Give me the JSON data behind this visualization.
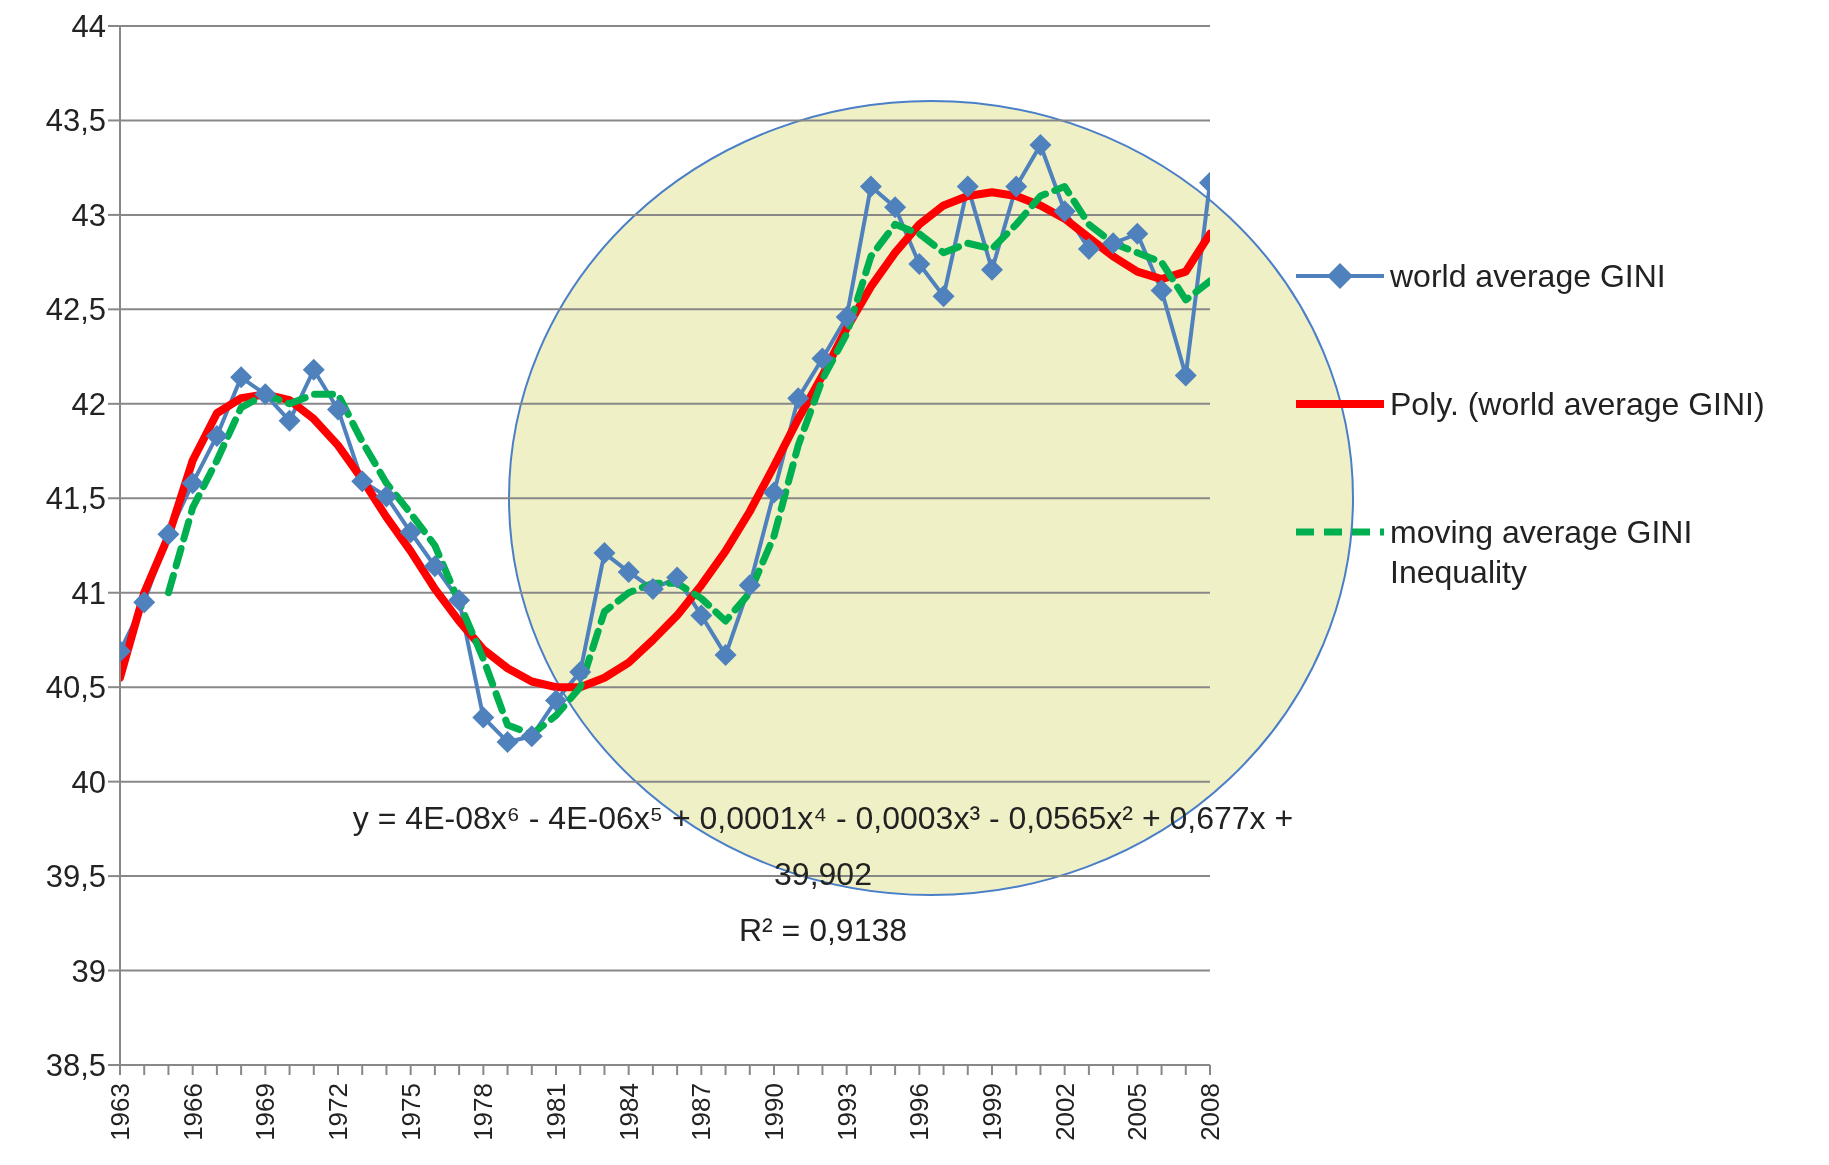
{
  "chart_data": {
    "type": "line",
    "categories": [
      "1963",
      null,
      null,
      "1966",
      null,
      null,
      "1969",
      null,
      null,
      "1972",
      null,
      null,
      "1975",
      null,
      null,
      "1978",
      null,
      null,
      "1981",
      null,
      null,
      "1984",
      null,
      null,
      "1987",
      null,
      null,
      "1990",
      null,
      null,
      "1993",
      null,
      null,
      "1996",
      null,
      null,
      "1999",
      null,
      null,
      "2002",
      null,
      null,
      "2005",
      null,
      null,
      "2008"
    ],
    "series": [
      {
        "name": "world average GINI",
        "color": "#4f81bd",
        "marker": "diamond",
        "line_style": "solid",
        "values": [
          40.69,
          40.95,
          41.31,
          41.58,
          41.83,
          42.14,
          42.05,
          41.91,
          42.18,
          41.97,
          41.59,
          41.51,
          41.32,
          41.14,
          40.96,
          40.34,
          40.21,
          40.24,
          40.43,
          40.58,
          41.21,
          41.11,
          41.02,
          41.08,
          40.88,
          40.67,
          41.04,
          41.53,
          42.03,
          42.24,
          42.46,
          43.15,
          43.04,
          42.74,
          42.57,
          43.15,
          42.71,
          43.15,
          43.37,
          43.02,
          42.82,
          42.85,
          42.9,
          42.6,
          42.15,
          43.17
        ]
      },
      {
        "name": "Poly. (world average GINI)",
        "color": "#ff0000",
        "marker": "none",
        "line_style": "solid",
        "values": [
          40.55,
          41.0,
          41.3,
          41.7,
          41.95,
          42.03,
          42.05,
          42.02,
          41.92,
          41.78,
          41.6,
          41.4,
          41.22,
          41.02,
          40.85,
          40.7,
          40.6,
          40.53,
          40.5,
          40.5,
          40.55,
          40.63,
          40.75,
          40.88,
          41.04,
          41.22,
          41.43,
          41.67,
          41.92,
          42.15,
          42.4,
          42.62,
          42.8,
          42.95,
          43.05,
          43.1,
          43.12,
          43.1,
          43.05,
          42.98,
          42.88,
          42.78,
          42.7,
          42.66,
          42.7,
          42.9
        ]
      },
      {
        "name": "moving average GINI Inequality",
        "color": "#00b050",
        "marker": "none",
        "line_style": "dashed",
        "values": [
          null,
          null,
          41.0,
          41.45,
          41.7,
          41.98,
          42.05,
          42.0,
          42.05,
          42.05,
          41.8,
          41.58,
          41.42,
          41.25,
          40.95,
          40.65,
          40.3,
          40.25,
          40.35,
          40.5,
          40.9,
          41.0,
          41.05,
          41.05,
          40.97,
          40.85,
          41.0,
          41.3,
          41.78,
          42.13,
          42.37,
          42.78,
          42.95,
          42.9,
          42.8,
          42.85,
          42.82,
          42.95,
          43.1,
          43.15,
          42.95,
          42.85,
          42.8,
          42.75,
          42.55,
          42.65
        ]
      }
    ],
    "ylim": [
      38.5,
      44
    ],
    "yticks": [
      {
        "value": 38.5,
        "label": "38,5"
      },
      39,
      {
        "value": 39.5,
        "label": "39,5"
      },
      40,
      {
        "value": 40.5,
        "label": "40,5"
      },
      41,
      {
        "value": 41.5,
        "label": "41,5"
      },
      42,
      {
        "value": 42.5,
        "label": "42,5"
      },
      43,
      {
        "value": 43.5,
        "label": "43,5"
      },
      44
    ],
    "grid": "y",
    "legend": "right",
    "annotations": [
      "y = 4E-08x⁶ - 4E-06x⁵ + 0,0001x⁴ - 0,0003x³ - 0,0565x² + 0,677x + 39,902",
      "R² = 0,9138"
    ]
  }
}
